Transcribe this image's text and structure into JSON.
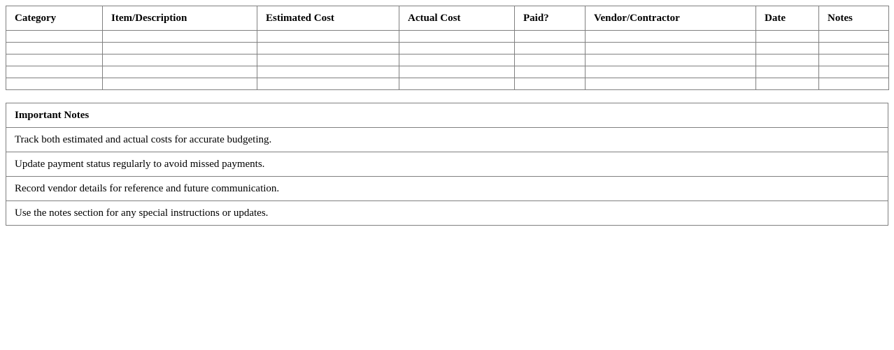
{
  "budget_table": {
    "headers": [
      "Category",
      "Item/Description",
      "Estimated Cost",
      "Actual Cost",
      "Paid?",
      "Vendor/Contractor",
      "Date",
      "Notes"
    ]
  },
  "notes": {
    "title": "Important Notes",
    "items": [
      "Track both estimated and actual costs for accurate budgeting.",
      "Update payment status regularly to avoid missed payments.",
      "Record vendor details for reference and future communication.",
      "Use the notes section for any special instructions or updates."
    ]
  }
}
